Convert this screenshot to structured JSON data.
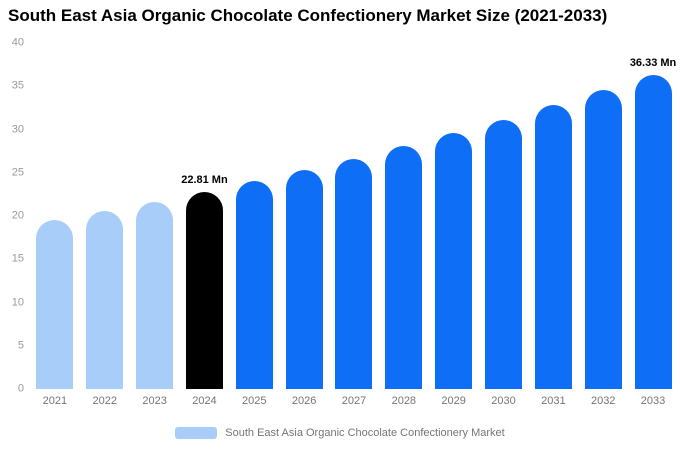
{
  "chart_data": {
    "type": "bar",
    "title": "South East Asia Organic Chocolate Confectionery Market Size (2021-2033)",
    "categories": [
      "2021",
      "2022",
      "2023",
      "2024",
      "2025",
      "2026",
      "2027",
      "2028",
      "2029",
      "2030",
      "2031",
      "2032",
      "2033"
    ],
    "values": [
      19.53,
      20.57,
      21.66,
      22.81,
      24.02,
      25.3,
      26.64,
      28.06,
      29.55,
      31.12,
      32.78,
      34.52,
      36.33
    ],
    "value_labels": [
      "",
      "",
      "",
      "22.81 Mn",
      "",
      "",
      "",
      "",
      "",
      "",
      "",
      "",
      "36.33 Mn"
    ],
    "bar_colors": [
      "#a9cdf9",
      "#a9cdf9",
      "#a9cdf9",
      "#000000",
      "#0e6ef5",
      "#0e6ef5",
      "#0e6ef5",
      "#0e6ef5",
      "#0e6ef5",
      "#0e6ef5",
      "#0e6ef5",
      "#0e6ef5",
      "#0e6ef5"
    ],
    "xlabel": "",
    "ylabel": "",
    "ylim": [
      0,
      40
    ],
    "yticks": [
      0,
      5,
      10,
      15,
      20,
      25,
      30,
      35,
      40
    ],
    "grid": false,
    "legend_position": "bottom",
    "legend": "South East Asia Organic Chocolate Confectionery Market",
    "legend_color": "#a9cdf9",
    "unit": "Mn"
  }
}
